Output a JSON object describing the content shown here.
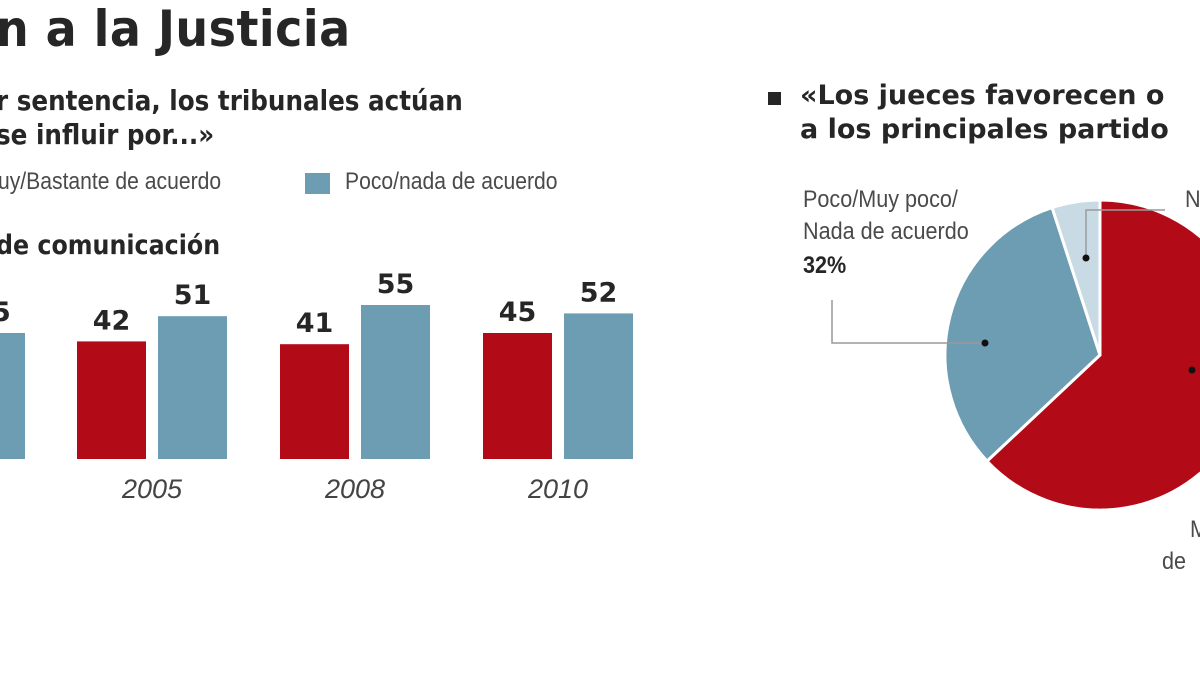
{
  "colors": {
    "red": "#b30a18",
    "blue": "#6d9db3",
    "lightblue": "#c8dbe5"
  },
  "chart_data": [
    {
      "type": "bar",
      "title": "n a la Justicia",
      "subtitle": [
        "r sentencia, los tribunales actúan",
        "se influir por...»"
      ],
      "category_label": "de comunicación",
      "legend": [
        "uy/Bastante de acuerdo",
        "Poco/nada de acuerdo"
      ],
      "categories": [
        "",
        "2005",
        "2008",
        "2010"
      ],
      "series": [
        {
          "name": "uy/Bastante de acuerdo",
          "color": "#b30a18",
          "values": [
            null,
            42,
            41,
            45
          ]
        },
        {
          "name": "Poco/nada de acuerdo",
          "color": "#6d9db3",
          "values": [
            45,
            51,
            55,
            52
          ]
        }
      ],
      "data_labels": {
        "red": [
          "",
          "42",
          "41",
          "45"
        ],
        "blue": [
          "5",
          "51",
          "55",
          "52"
        ]
      },
      "ylim": [
        0,
        60
      ],
      "grid": false
    },
    {
      "type": "pie",
      "title": [
        "«Los jueces favorecen o",
        "a los principales partido"
      ],
      "slices": [
        {
          "label": "",
          "color": "#b30a18",
          "value": 63
        },
        {
          "label": "Poco/Muy poco/ Nada de acuerdo",
          "value_label": "32%",
          "color": "#6d9db3",
          "value": 32
        },
        {
          "label": "",
          "color": "#c8dbe5",
          "value": 5
        }
      ],
      "partial_labels": {
        "lightblue": "N",
        "red_line1": "M",
        "red_line2": "de"
      },
      "label_lines": [
        "Poco/Muy poco/",
        "Nada de acuerdo"
      ],
      "value_label": "32%"
    }
  ]
}
